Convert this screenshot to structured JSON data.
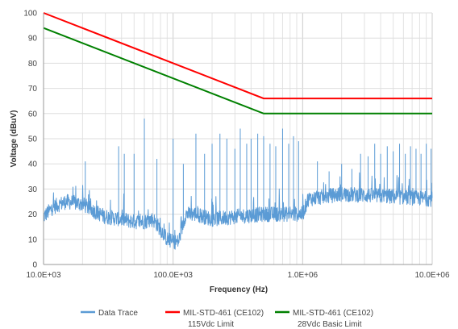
{
  "chart_data": {
    "type": "line",
    "x_scale": "log",
    "xlim": [
      10000,
      10000000
    ],
    "ylim": [
      0,
      100
    ],
    "xlabel": "Frequency (Hz)",
    "ylabel": "Voltage (dBuV)",
    "x_ticks": [
      {
        "value": 10000,
        "label": "10.0E+03"
      },
      {
        "value": 100000,
        "label": "100.0E+03"
      },
      {
        "value": 1000000,
        "label": "1.0E+06"
      },
      {
        "value": 10000000,
        "label": "10.0E+06"
      }
    ],
    "y_ticks": [
      0,
      10,
      20,
      30,
      40,
      50,
      60,
      70,
      80,
      90,
      100
    ],
    "grid": true,
    "legend_position": "bottom",
    "series": [
      {
        "name": "Data Trace",
        "color": "#5b9bd5",
        "kind": "noisy-trace",
        "baseline": [
          [
            10000,
            19
          ],
          [
            12000,
            23
          ],
          [
            15000,
            25
          ],
          [
            20000,
            24
          ],
          [
            25000,
            21
          ],
          [
            30000,
            19
          ],
          [
            40000,
            18
          ],
          [
            50000,
            17
          ],
          [
            60000,
            17
          ],
          [
            70000,
            18
          ],
          [
            80000,
            14
          ],
          [
            90000,
            10
          ],
          [
            100000,
            9
          ],
          [
            110000,
            9
          ],
          [
            125000,
            20
          ],
          [
            150000,
            20
          ],
          [
            200000,
            18
          ],
          [
            300000,
            19
          ],
          [
            500000,
            20
          ],
          [
            700000,
            20
          ],
          [
            1000000,
            20
          ],
          [
            1100000,
            26
          ],
          [
            2000000,
            28
          ],
          [
            5000000,
            27
          ],
          [
            10000000,
            26
          ]
        ],
        "peaks": [
          [
            21000,
            41
          ],
          [
            38000,
            47
          ],
          [
            42000,
            44
          ],
          [
            50000,
            44
          ],
          [
            60000,
            58
          ],
          [
            75000,
            42
          ],
          [
            100000,
            50
          ],
          [
            120000,
            40
          ],
          [
            150000,
            52
          ],
          [
            175000,
            44
          ],
          [
            200000,
            48
          ],
          [
            230000,
            52
          ],
          [
            260000,
            50
          ],
          [
            300000,
            46
          ],
          [
            330000,
            54
          ],
          [
            370000,
            48
          ],
          [
            400000,
            50
          ],
          [
            450000,
            52
          ],
          [
            500000,
            51
          ],
          [
            560000,
            48
          ],
          [
            620000,
            47
          ],
          [
            700000,
            54
          ],
          [
            780000,
            48
          ],
          [
            850000,
            51
          ],
          [
            930000,
            49
          ],
          [
            1300000,
            41
          ],
          [
            1600000,
            37
          ],
          [
            2000000,
            40
          ],
          [
            2400000,
            38
          ],
          [
            2800000,
            44
          ],
          [
            3200000,
            43
          ],
          [
            3600000,
            48
          ],
          [
            4000000,
            44
          ],
          [
            4500000,
            47
          ],
          [
            5000000,
            45
          ],
          [
            5600000,
            48
          ],
          [
            6200000,
            44
          ],
          [
            6800000,
            47
          ],
          [
            7500000,
            46
          ],
          [
            8200000,
            44
          ],
          [
            9000000,
            48
          ],
          [
            9800000,
            46
          ]
        ]
      },
      {
        "name": "MIL-STD-461 (CE102) 115Vdc Limit",
        "color": "#ff0000",
        "points": [
          [
            10000,
            100
          ],
          [
            500000,
            66
          ],
          [
            10000000,
            66
          ]
        ]
      },
      {
        "name": "MIL-STD-461 (CE102) 28Vdc Basic Limit",
        "color": "#008000",
        "points": [
          [
            10000,
            94
          ],
          [
            500000,
            60
          ],
          [
            10000000,
            60
          ]
        ]
      }
    ],
    "legend": [
      {
        "line1": "Data Trace",
        "line2": "",
        "color": "#5b9bd5"
      },
      {
        "line1": "MIL-STD-461 (CE102)",
        "line2": "115Vdc Limit",
        "color": "#ff0000"
      },
      {
        "line1": "MIL-STD-461 (CE102)",
        "line2": "28Vdc Basic Limit",
        "color": "#008000"
      }
    ]
  }
}
